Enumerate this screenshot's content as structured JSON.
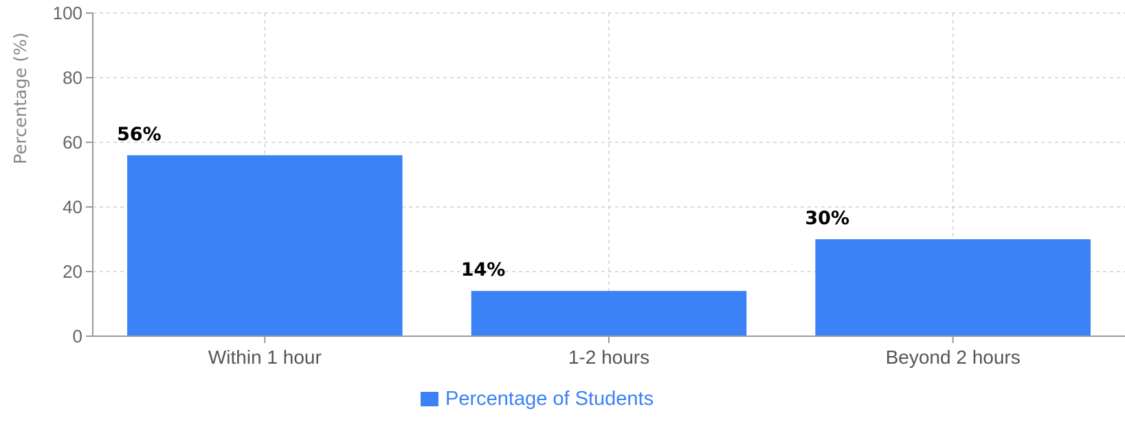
{
  "chart_data": {
    "type": "bar",
    "categories": [
      "Within 1 hour",
      "1-2 hours",
      "Beyond 2 hours"
    ],
    "series": [
      {
        "name": "Percentage of Students",
        "values": [
          56,
          14,
          30
        ],
        "labels": [
          "56%",
          "14%",
          "30%"
        ]
      }
    ],
    "title": "",
    "xlabel": "",
    "ylabel": "Percentage (%)",
    "ylim": [
      0,
      100
    ],
    "yticks": [
      0,
      20,
      40,
      60,
      80,
      100
    ],
    "grid": true,
    "legend_position": "bottom-center"
  },
  "colors": {
    "bar": "#3b82f6",
    "grid": "#d0d0d0",
    "axis": "#999999",
    "legend_text": "#3b82f6"
  }
}
